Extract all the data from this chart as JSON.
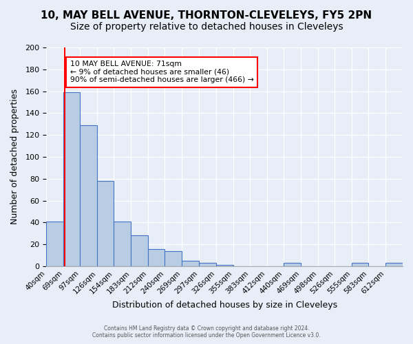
{
  "title_line1": "10, MAY BELL AVENUE, THORNTON-CLEVELEYS, FY5 2PN",
  "title_line2": "Size of property relative to detached houses in Cleveleys",
  "xlabel": "Distribution of detached houses by size in Cleveleys",
  "ylabel": "Number of detached properties",
  "bin_labels": [
    "40sqm",
    "69sqm",
    "97sqm",
    "126sqm",
    "154sqm",
    "183sqm",
    "212sqm",
    "240sqm",
    "269sqm",
    "297sqm",
    "326sqm",
    "355sqm",
    "383sqm",
    "412sqm",
    "440sqm",
    "469sqm",
    "498sqm",
    "526sqm",
    "555sqm",
    "583sqm",
    "612sqm"
  ],
  "bar_heights": [
    41,
    159,
    129,
    78,
    41,
    28,
    16,
    14,
    5,
    3,
    1,
    0,
    0,
    0,
    3,
    0,
    0,
    0,
    3,
    0,
    3
  ],
  "bar_color": "#b8cce4",
  "bar_edgecolor": "#4472c4",
  "bar_linewidth": 0.8,
  "property_line_value": 71,
  "bin_starts": [
    40,
    69,
    97,
    126,
    154,
    183,
    212,
    240,
    269,
    297,
    326,
    355,
    383,
    412,
    440,
    469,
    498,
    526,
    555,
    583,
    612
  ],
  "property_line_color": "#ff0000",
  "annotation_text": "10 MAY BELL AVENUE: 71sqm\n← 9% of detached houses are smaller (46)\n90% of semi-detached houses are larger (466) →",
  "annotation_box_edgecolor": "#ff0000",
  "annotation_box_facecolor": "#ffffff",
  "ylim": [
    0,
    200
  ],
  "yticks": [
    0,
    20,
    40,
    60,
    80,
    100,
    120,
    140,
    160,
    180,
    200
  ],
  "background_color": "#e8eef8",
  "plot_background": "#e8eef8",
  "footer_line1": "Contains HM Land Registry data © Crown copyright and database right 2024.",
  "footer_line2": "Contains public sector information licensed under the Open Government Licence v3.0.",
  "grid_color": "#ffffff",
  "title_fontsize": 11,
  "subtitle_fontsize": 10,
  "xlabel_fontsize": 9,
  "ylabel_fontsize": 9
}
